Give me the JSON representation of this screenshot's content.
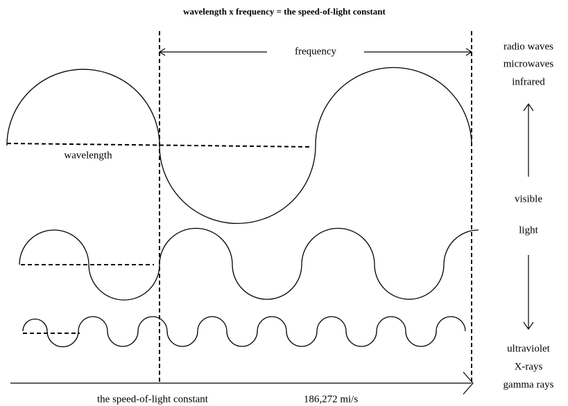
{
  "title": "wavelength x frequency = the speed-of-light constant",
  "frequency_label": "frequency",
  "wavelength_label": "wavelength",
  "spectrum": {
    "long": [
      "radio waves",
      "microwaves",
      "infrared"
    ],
    "middle": [
      "visible",
      "light"
    ],
    "short": [
      "ultraviolet",
      "X-rays",
      "gamma rays"
    ]
  },
  "speed": {
    "label": "the speed-of-light constant",
    "value": "186,272 mi/s"
  }
}
